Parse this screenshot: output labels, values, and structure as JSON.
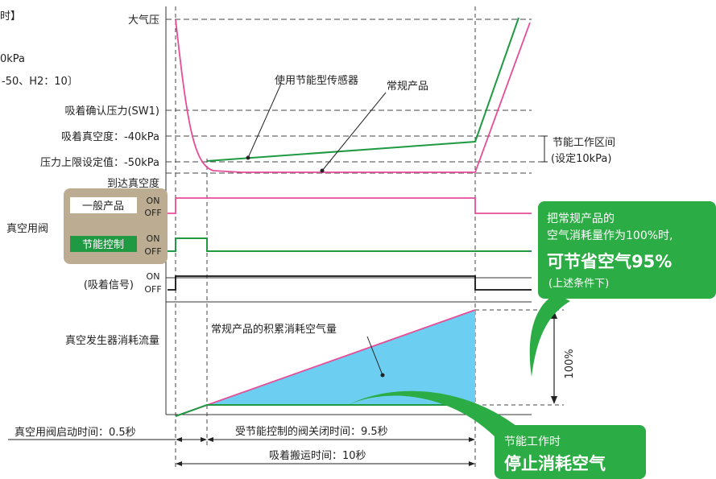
{
  "header": {
    "cut_line_1": "时】",
    "cut_line_2": "0kPa",
    "cut_line_3": "-50、H2：10〕"
  },
  "pressure_levels": {
    "atmosphere": "大气压",
    "sw1": "吸着确认压力(SW1)",
    "vacuum_40": "吸着真空度：-40kPa",
    "upper_50": "压力上限设定值：-50kPa",
    "reach": "到达真空度"
  },
  "pressure_curves": {
    "energy_saving": "使用节能型传感器",
    "conventional": "常规产品"
  },
  "energy_zone": {
    "line1": "节能工作区间",
    "line2": "(设定10kPa)"
  },
  "valve": {
    "label": "真空用阀",
    "general": "一般产品",
    "saving": "节能控制",
    "on": "ON",
    "off": "OFF"
  },
  "signal": {
    "label": "(吸着信号)",
    "on": "ON",
    "off": "OFF"
  },
  "flow": {
    "label": "真空发生器消耗流量",
    "cumulative": "常规产品的积累消耗空气量",
    "pct": "100%"
  },
  "timeline": {
    "start": "真空用阀启动时间：0.5秒",
    "closed": "受节能控制的阀关闭时间：9.5秒",
    "transport": "吸着搬运时间：10秒"
  },
  "callout_saving": {
    "line1": "把常规产品的",
    "line2": "空气消耗量作为100%时,",
    "line3": "可节省空气95%",
    "line4": "(上述条件下)"
  },
  "callout_stop": {
    "line1": "节能工作时",
    "line2": "停止消耗空气"
  },
  "colors": {
    "pink": "#e64d96",
    "green": "#1f9a43",
    "callout_green": "#2cac45",
    "fill_blue": "#6ccff2",
    "panel_tan": "#bcad92"
  }
}
